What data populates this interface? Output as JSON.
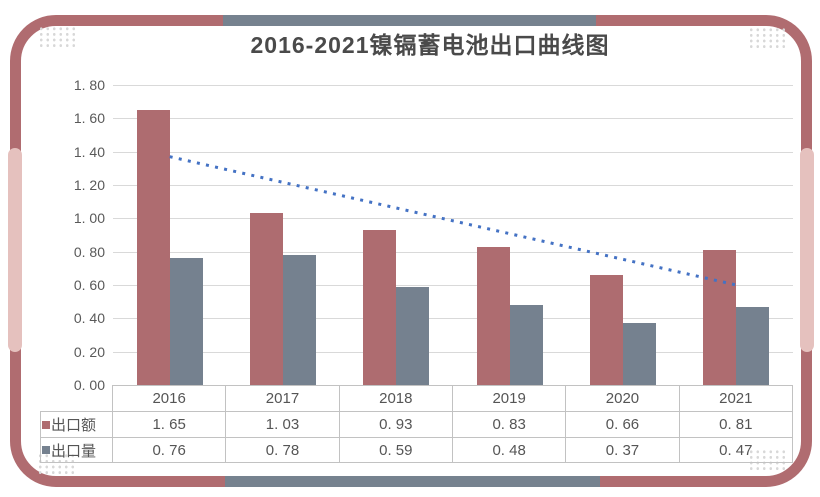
{
  "title": "2016-2021镍镉蓄电池出口曲线图",
  "colors": {
    "frame": "#B06C70",
    "frame_accent_blue": "#76828F",
    "frame_accent_pink": "#E5C1BE",
    "bar_red": "#AE6C70",
    "bar_blue": "#75818F",
    "trendline_blue": "#4472C4",
    "gridline": "#D9D9D9",
    "table_border": "#C2C2C2",
    "text": "#555555"
  },
  "chart_data": {
    "type": "bar",
    "title": "2016-2021镍镉蓄电池出口曲线图",
    "categories": [
      "2016",
      "2017",
      "2018",
      "2019",
      "2020",
      "2021"
    ],
    "series": [
      {
        "name": "出口额",
        "values": [
          1.65,
          1.03,
          0.93,
          0.83,
          0.66,
          0.81
        ],
        "color": "#AE6C70"
      },
      {
        "name": "出口量",
        "values": [
          0.76,
          0.78,
          0.59,
          0.48,
          0.37,
          0.47
        ],
        "color": "#75818F"
      }
    ],
    "trendline": {
      "of_series": "出口额",
      "fit": "linear",
      "style": "dotted",
      "color": "#4472C4",
      "start_value": 1.37,
      "end_value": 0.6
    },
    "y_axis": {
      "min": 0.0,
      "max": 1.8,
      "step": 0.2,
      "tick_labels": [
        "1. 80",
        "1. 60",
        "1. 40",
        "1. 20",
        "1. 00",
        "0. 80",
        "0. 60",
        "0. 40",
        "0. 20",
        "0. 00"
      ]
    },
    "x_axis": {
      "tick_labels": [
        "2016",
        "2017",
        "2018",
        "2019",
        "2020",
        "2021"
      ]
    },
    "grid": true,
    "legend_position": "data-table-left",
    "data_table_shown": true
  }
}
